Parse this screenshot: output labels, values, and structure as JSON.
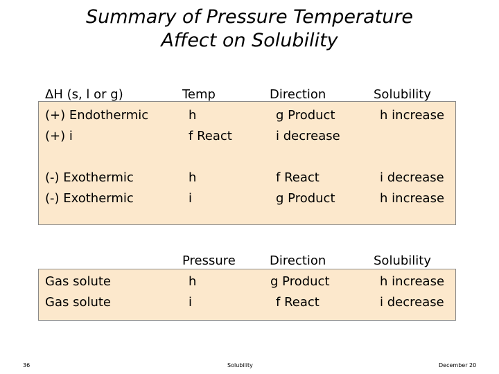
{
  "title": {
    "line1": "Summary of Pressure Temperature",
    "line2": "Affect on Solubility"
  },
  "table1": {
    "headers": [
      "ΔH (s, l or g)",
      "Temp",
      "Direction",
      "Solubility"
    ],
    "rows": [
      [
        "(+) Endothermic",
        "",
        "Product",
        "increase"
      ],
      [
        "(+)",
        "React",
        "decrease",
        ""
      ],
      [
        "(-) Exothermic",
        "",
        "React",
        "decrease"
      ],
      [
        "(-) Exothermic",
        "",
        "Product",
        "increase"
      ]
    ]
  },
  "table2": {
    "headers": [
      "Pressure",
      "Direction",
      "Solubility"
    ],
    "rows": [
      [
        "Gas solute",
        "",
        "Product",
        "increase"
      ],
      [
        "Gas solute",
        "",
        "React",
        "decrease"
      ]
    ]
  },
  "footer": {
    "slide_number": "36",
    "center": "Solubility",
    "date": "December 20"
  },
  "symbols": {
    "up": "h",
    "down": "i",
    "left_arrow": "f",
    "right_arrow": "g"
  }
}
